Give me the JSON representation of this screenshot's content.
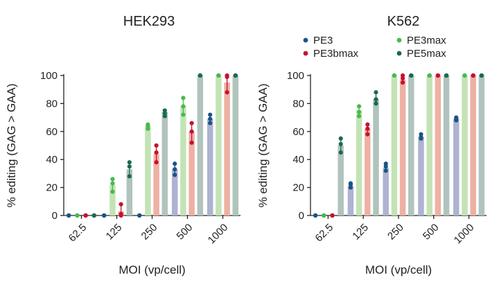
{
  "figure": {
    "series_legend": [
      {
        "name": "PE3",
        "color": "#1a5487"
      },
      {
        "name": "PE3bmax",
        "color": "#c8102e"
      },
      {
        "name": "PE3max",
        "color": "#49b84f"
      },
      {
        "name": "PE5max",
        "color": "#1a6a4f"
      }
    ],
    "bar_colors": {
      "PE3": "#adb3d1",
      "PE3bmax": "#eeb0a3",
      "PE3max": "#c3e3b5",
      "PE5max": "#b0c4bd"
    }
  },
  "chart_data": [
    {
      "type": "bar",
      "title": "HEK293",
      "xlabel": "MOI (vp/cell)",
      "ylabel": "% editing (GAG > GAA)",
      "ylim": [
        0,
        100
      ],
      "yticks": [
        "0",
        "20",
        "40",
        "60",
        "80",
        "100"
      ],
      "categories": [
        "62.5",
        "125",
        "250",
        "500",
        "1000"
      ],
      "series": [
        {
          "name": "PE3",
          "values": [
            0,
            0,
            0,
            33,
            69
          ],
          "points": [
            [
              0,
              0,
              0
            ],
            [
              0,
              0,
              0
            ],
            [
              0,
              0,
              0
            ],
            [
              29,
              33,
              37
            ],
            [
              66,
              69,
              72
            ]
          ]
        },
        {
          "name": "PE3max",
          "values": [
            0,
            22,
            64,
            78,
            100
          ],
          "points": [
            [
              0,
              0,
              0
            ],
            [
              17,
              23,
              26
            ],
            [
              62,
              64,
              65
            ],
            [
              72,
              78,
              84
            ],
            [
              100,
              100,
              100
            ]
          ]
        },
        {
          "name": "PE3bmax",
          "values": [
            0,
            3,
            44,
            60,
            95
          ],
          "points": [
            [
              0,
              0,
              0
            ],
            [
              0,
              1,
              8
            ],
            [
              38,
              45,
              50
            ],
            [
              52,
              60,
              66
            ],
            [
              88,
              99,
              100
            ]
          ]
        },
        {
          "name": "PE5max",
          "values": [
            0,
            33,
            74,
            100,
            100
          ],
          "points": [
            [
              0,
              0,
              0
            ],
            [
              28,
              35,
              38
            ],
            [
              71,
              73,
              75
            ],
            [
              100,
              100,
              100
            ],
            [
              100,
              100,
              100
            ]
          ]
        }
      ]
    },
    {
      "type": "bar",
      "title": "K562",
      "xlabel": "MOI (vp/cell)",
      "ylabel": "% editing (GAG > GAA)",
      "ylim": [
        0,
        100
      ],
      "yticks": [
        "0",
        "20",
        "40",
        "60",
        "80",
        "100"
      ],
      "categories": [
        "62.5",
        "125",
        "250",
        "500",
        "1000"
      ],
      "series": [
        {
          "name": "PE3",
          "values": [
            0,
            21,
            34,
            56,
            69
          ],
          "points": [
            [
              0,
              0,
              0
            ],
            [
              20,
              22,
              23
            ],
            [
              32,
              35,
              37
            ],
            [
              55,
              56,
              58
            ],
            [
              68,
              69,
              70
            ]
          ]
        },
        {
          "name": "PE3max",
          "values": [
            0,
            75,
            100,
            100,
            100
          ],
          "points": [
            [
              0,
              0,
              0
            ],
            [
              71,
              74,
              78
            ],
            [
              100,
              100,
              100
            ],
            [
              100,
              100,
              100
            ],
            [
              100,
              100,
              100
            ]
          ]
        },
        {
          "name": "PE3bmax",
          "values": [
            0,
            62,
            97,
            100,
            100
          ],
          "points": [
            [
              0,
              0,
              0
            ],
            [
              58,
              62,
              65
            ],
            [
              95,
              98,
              100
            ],
            [
              100,
              100,
              100
            ],
            [
              100,
              100,
              100
            ]
          ]
        },
        {
          "name": "PE5max",
          "values": [
            50,
            83,
            100,
            100,
            100
          ],
          "points": [
            [
              45,
              51,
              55
            ],
            [
              80,
              83,
              88
            ],
            [
              100,
              100,
              100
            ],
            [
              100,
              100,
              100
            ],
            [
              100,
              100,
              100
            ]
          ]
        }
      ]
    }
  ]
}
